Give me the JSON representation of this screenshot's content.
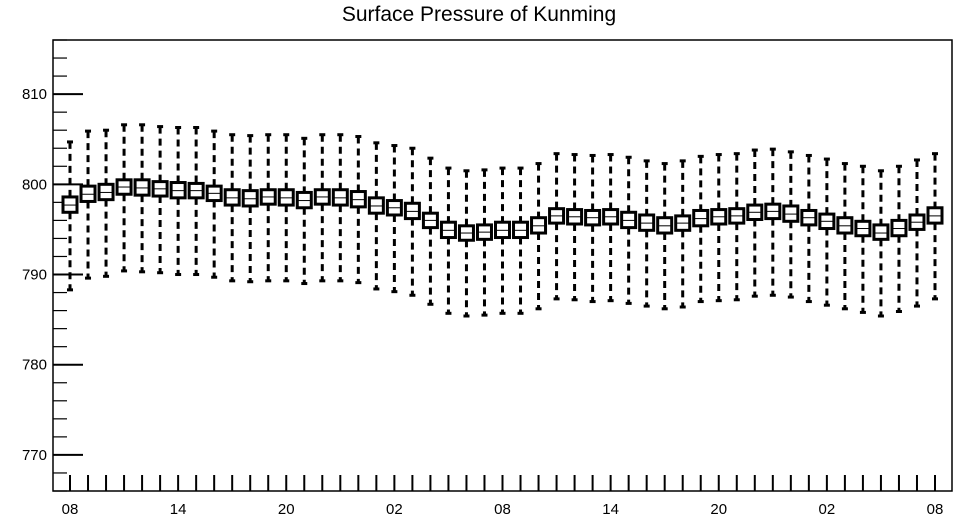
{
  "chart_data": {
    "type": "box",
    "title": "Surface Pressure of Kunming",
    "xlabel": "",
    "ylabel": "",
    "ylim": [
      766,
      816
    ],
    "yticks": [
      770,
      780,
      790,
      800,
      810
    ],
    "x_tick_labels": [
      "08",
      "14",
      "20",
      "02",
      "08",
      "14",
      "20",
      "02",
      "08"
    ],
    "x_tick_steps": [
      0,
      6,
      12,
      18,
      24,
      30,
      36,
      42,
      48
    ],
    "grid": false,
    "colors": {
      "box_fill": "#ffffff",
      "stroke": "#000000",
      "background": "#ffffff"
    },
    "boxes": [
      {
        "step": 0,
        "whisker_low": 788.3,
        "q1": 796.9,
        "median": 797.7,
        "q3": 798.6,
        "whisker_high": 804.7
      },
      {
        "step": 1,
        "whisker_low": 789.6,
        "q1": 798.1,
        "median": 798.9,
        "q3": 799.8,
        "whisker_high": 805.9
      },
      {
        "step": 2,
        "whisker_low": 789.8,
        "q1": 798.3,
        "median": 799.1,
        "q3": 800.0,
        "whisker_high": 806.0
      },
      {
        "step": 3,
        "whisker_low": 790.4,
        "q1": 798.9,
        "median": 799.7,
        "q3": 800.5,
        "whisker_high": 806.6
      },
      {
        "step": 4,
        "whisker_low": 790.3,
        "q1": 798.8,
        "median": 799.6,
        "q3": 800.5,
        "whisker_high": 806.6
      },
      {
        "step": 5,
        "whisker_low": 790.2,
        "q1": 798.7,
        "median": 799.5,
        "q3": 800.3,
        "whisker_high": 806.4
      },
      {
        "step": 6,
        "whisker_low": 790.0,
        "q1": 798.5,
        "median": 799.3,
        "q3": 800.2,
        "whisker_high": 806.3
      },
      {
        "step": 7,
        "whisker_low": 790.0,
        "q1": 798.5,
        "median": 799.3,
        "q3": 800.1,
        "whisker_high": 806.3
      },
      {
        "step": 8,
        "whisker_low": 789.7,
        "q1": 798.2,
        "median": 799.0,
        "q3": 799.8,
        "whisker_high": 805.9
      },
      {
        "step": 9,
        "whisker_low": 789.3,
        "q1": 797.7,
        "median": 798.5,
        "q3": 799.4,
        "whisker_high": 805.5
      },
      {
        "step": 10,
        "whisker_low": 789.2,
        "q1": 797.6,
        "median": 798.4,
        "q3": 799.3,
        "whisker_high": 805.4
      },
      {
        "step": 11,
        "whisker_low": 789.3,
        "q1": 797.8,
        "median": 798.6,
        "q3": 799.4,
        "whisker_high": 805.5
      },
      {
        "step": 12,
        "whisker_low": 789.3,
        "q1": 797.7,
        "median": 798.5,
        "q3": 799.4,
        "whisker_high": 805.5
      },
      {
        "step": 13,
        "whisker_low": 789.0,
        "q1": 797.4,
        "median": 798.2,
        "q3": 799.1,
        "whisker_high": 805.1
      },
      {
        "step": 14,
        "whisker_low": 789.3,
        "q1": 797.8,
        "median": 798.6,
        "q3": 799.4,
        "whisker_high": 805.5
      },
      {
        "step": 15,
        "whisker_low": 789.3,
        "q1": 797.7,
        "median": 798.5,
        "q3": 799.4,
        "whisker_high": 805.5
      },
      {
        "step": 16,
        "whisker_low": 789.1,
        "q1": 797.5,
        "median": 798.3,
        "q3": 799.2,
        "whisker_high": 805.3
      },
      {
        "step": 17,
        "whisker_low": 788.4,
        "q1": 796.8,
        "median": 797.6,
        "q3": 798.5,
        "whisker_high": 804.6
      },
      {
        "step": 18,
        "whisker_low": 788.1,
        "q1": 796.6,
        "median": 797.4,
        "q3": 798.2,
        "whisker_high": 804.3
      },
      {
        "step": 19,
        "whisker_low": 787.7,
        "q1": 796.2,
        "median": 797.0,
        "q3": 797.9,
        "whisker_high": 804.0
      },
      {
        "step": 20,
        "whisker_low": 786.7,
        "q1": 795.2,
        "median": 796.0,
        "q3": 796.8,
        "whisker_high": 802.9
      },
      {
        "step": 21,
        "whisker_low": 785.7,
        "q1": 794.1,
        "median": 794.9,
        "q3": 795.8,
        "whisker_high": 801.8
      },
      {
        "step": 22,
        "whisker_low": 785.4,
        "q1": 793.8,
        "median": 794.6,
        "q3": 795.4,
        "whisker_high": 801.5
      },
      {
        "step": 23,
        "whisker_low": 785.5,
        "q1": 793.9,
        "median": 794.7,
        "q3": 795.5,
        "whisker_high": 801.6
      },
      {
        "step": 24,
        "whisker_low": 785.7,
        "q1": 794.1,
        "median": 794.9,
        "q3": 795.8,
        "whisker_high": 801.8
      },
      {
        "step": 25,
        "whisker_low": 785.7,
        "q1": 794.1,
        "median": 794.9,
        "q3": 795.8,
        "whisker_high": 801.8
      },
      {
        "step": 26,
        "whisker_low": 786.2,
        "q1": 794.6,
        "median": 795.4,
        "q3": 796.3,
        "whisker_high": 802.3
      },
      {
        "step": 27,
        "whisker_low": 787.3,
        "q1": 795.7,
        "median": 796.5,
        "q3": 797.3,
        "whisker_high": 803.4
      },
      {
        "step": 28,
        "whisker_low": 787.2,
        "q1": 795.6,
        "median": 796.4,
        "q3": 797.2,
        "whisker_high": 803.3
      },
      {
        "step": 29,
        "whisker_low": 787.0,
        "q1": 795.5,
        "median": 796.3,
        "q3": 797.1,
        "whisker_high": 803.2
      },
      {
        "step": 30,
        "whisker_low": 787.1,
        "q1": 795.6,
        "median": 796.4,
        "q3": 797.2,
        "whisker_high": 803.3
      },
      {
        "step": 31,
        "whisker_low": 786.8,
        "q1": 795.2,
        "median": 796.0,
        "q3": 796.9,
        "whisker_high": 803.0
      },
      {
        "step": 32,
        "whisker_low": 786.5,
        "q1": 794.9,
        "median": 795.7,
        "q3": 796.6,
        "whisker_high": 802.6
      },
      {
        "step": 33,
        "whisker_low": 786.2,
        "q1": 794.6,
        "median": 795.4,
        "q3": 796.3,
        "whisker_high": 802.3
      },
      {
        "step": 34,
        "whisker_low": 786.4,
        "q1": 794.9,
        "median": 795.7,
        "q3": 796.5,
        "whisker_high": 802.6
      },
      {
        "step": 35,
        "whisker_low": 787.0,
        "q1": 795.4,
        "median": 796.2,
        "q3": 797.1,
        "whisker_high": 803.1
      },
      {
        "step": 36,
        "whisker_low": 787.1,
        "q1": 795.6,
        "median": 796.4,
        "q3": 797.2,
        "whisker_high": 803.3
      },
      {
        "step": 37,
        "whisker_low": 787.2,
        "q1": 795.7,
        "median": 796.5,
        "q3": 797.3,
        "whisker_high": 803.4
      },
      {
        "step": 38,
        "whisker_low": 787.6,
        "q1": 796.1,
        "median": 796.9,
        "q3": 797.7,
        "whisker_high": 803.8
      },
      {
        "step": 39,
        "whisker_low": 787.7,
        "q1": 796.2,
        "median": 797.0,
        "q3": 797.8,
        "whisker_high": 803.9
      },
      {
        "step": 40,
        "whisker_low": 787.5,
        "q1": 795.9,
        "median": 796.7,
        "q3": 797.6,
        "whisker_high": 803.6
      },
      {
        "step": 41,
        "whisker_low": 787.0,
        "q1": 795.5,
        "median": 796.3,
        "q3": 797.1,
        "whisker_high": 803.2
      },
      {
        "step": 42,
        "whisker_low": 786.6,
        "q1": 795.1,
        "median": 795.9,
        "q3": 796.7,
        "whisker_high": 802.8
      },
      {
        "step": 43,
        "whisker_low": 786.2,
        "q1": 794.6,
        "median": 795.4,
        "q3": 796.3,
        "whisker_high": 802.3
      },
      {
        "step": 44,
        "whisker_low": 785.8,
        "q1": 794.3,
        "median": 795.1,
        "q3": 795.9,
        "whisker_high": 802.0
      },
      {
        "step": 45,
        "whisker_low": 785.4,
        "q1": 793.9,
        "median": 794.6,
        "q3": 795.5,
        "whisker_high": 801.5
      },
      {
        "step": 46,
        "whisker_low": 785.9,
        "q1": 794.3,
        "median": 795.1,
        "q3": 796.0,
        "whisker_high": 802.0
      },
      {
        "step": 47,
        "whisker_low": 786.5,
        "q1": 795.0,
        "median": 795.8,
        "q3": 796.6,
        "whisker_high": 802.7
      },
      {
        "step": 48,
        "whisker_low": 787.3,
        "q1": 795.7,
        "median": 796.5,
        "q3": 797.4,
        "whisker_high": 803.4
      }
    ]
  }
}
